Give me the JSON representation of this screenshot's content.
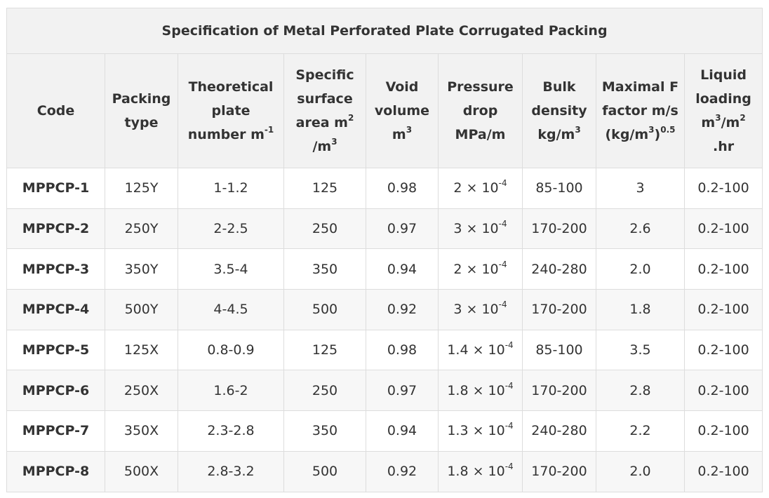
{
  "title": "Specification of Metal Perforated Plate Corrugated Packing",
  "headers": {
    "code": "Code",
    "packing_type_1": "Packing",
    "packing_type_2": "type",
    "theoretical_1": "Theoretical",
    "theoretical_2": "plate",
    "theoretical_3": "number m",
    "theoretical_sup": "-1",
    "specific_1": "Specific",
    "specific_2": "surface",
    "specific_3": "area m",
    "specific_sup": "2",
    "specific_4": "/m",
    "specific_sup2": "3",
    "void_1": "Void",
    "void_2": "volume",
    "void_3": "m",
    "void_sup": "3",
    "pressure_1": "Pressure",
    "pressure_2": "drop",
    "pressure_3": "MPa/m",
    "bulk_1": "Bulk",
    "bulk_2": "density",
    "bulk_3": "kg/m",
    "bulk_sup": "3",
    "fmax_1": "Maximal F",
    "fmax_2": "factor m/s",
    "fmax_3a": "(kg/m",
    "fmax_sup": "3",
    "fmax_3b": ")",
    "fmax_sup2": "0.5",
    "liquid_1": "Liquid",
    "liquid_2": "loading",
    "liquid_3a": "m",
    "liquid_sup": "3",
    "liquid_3b": "/m",
    "liquid_sup2": "2",
    "liquid_4": ".hr"
  },
  "rows": [
    {
      "code": "MPPCP-1",
      "type": "125Y",
      "plate": "1-1.2",
      "area": "125",
      "void": "0.98",
      "dp_base": "2 × 10",
      "dp_exp": "-4",
      "density": "85-100",
      "f": "3",
      "liquid": "0.2-100"
    },
    {
      "code": "MPPCP-2",
      "type": "250Y",
      "plate": "2-2.5",
      "area": "250",
      "void": "0.97",
      "dp_base": "3 × 10",
      "dp_exp": "-4",
      "density": "170-200",
      "f": "2.6",
      "liquid": "0.2-100"
    },
    {
      "code": "MPPCP-3",
      "type": "350Y",
      "plate": "3.5-4",
      "area": "350",
      "void": "0.94",
      "dp_base": "2 × 10",
      "dp_exp": "-4",
      "density": "240-280",
      "f": "2.0",
      "liquid": "0.2-100"
    },
    {
      "code": "MPPCP-4",
      "type": "500Y",
      "plate": "4-4.5",
      "area": "500",
      "void": "0.92",
      "dp_base": "3 × 10",
      "dp_exp": "-4",
      "density": "170-200",
      "f": "1.8",
      "liquid": "0.2-100"
    },
    {
      "code": "MPPCP-5",
      "type": "125X",
      "plate": "0.8-0.9",
      "area": "125",
      "void": "0.98",
      "dp_base": "1.4 × 10",
      "dp_exp": "-4",
      "density": "85-100",
      "f": "3.5",
      "liquid": "0.2-100"
    },
    {
      "code": "MPPCP-6",
      "type": "250X",
      "plate": "1.6-2",
      "area": "250",
      "void": "0.97",
      "dp_base": "1.8 × 10",
      "dp_exp": "-4",
      "density": "170-200",
      "f": "2.8",
      "liquid": "0.2-100"
    },
    {
      "code": "MPPCP-7",
      "type": "350X",
      "plate": "2.3-2.8",
      "area": "350",
      "void": "0.94",
      "dp_base": "1.3 × 10",
      "dp_exp": "-4",
      "density": "240-280",
      "f": "2.2",
      "liquid": "0.2-100"
    },
    {
      "code": "MPPCP-8",
      "type": "500X",
      "plate": "2.8-3.2",
      "area": "500",
      "void": "0.92",
      "dp_base": "1.8 × 10",
      "dp_exp": "-4",
      "density": "170-200",
      "f": "2.0",
      "liquid": "0.2-100"
    }
  ]
}
